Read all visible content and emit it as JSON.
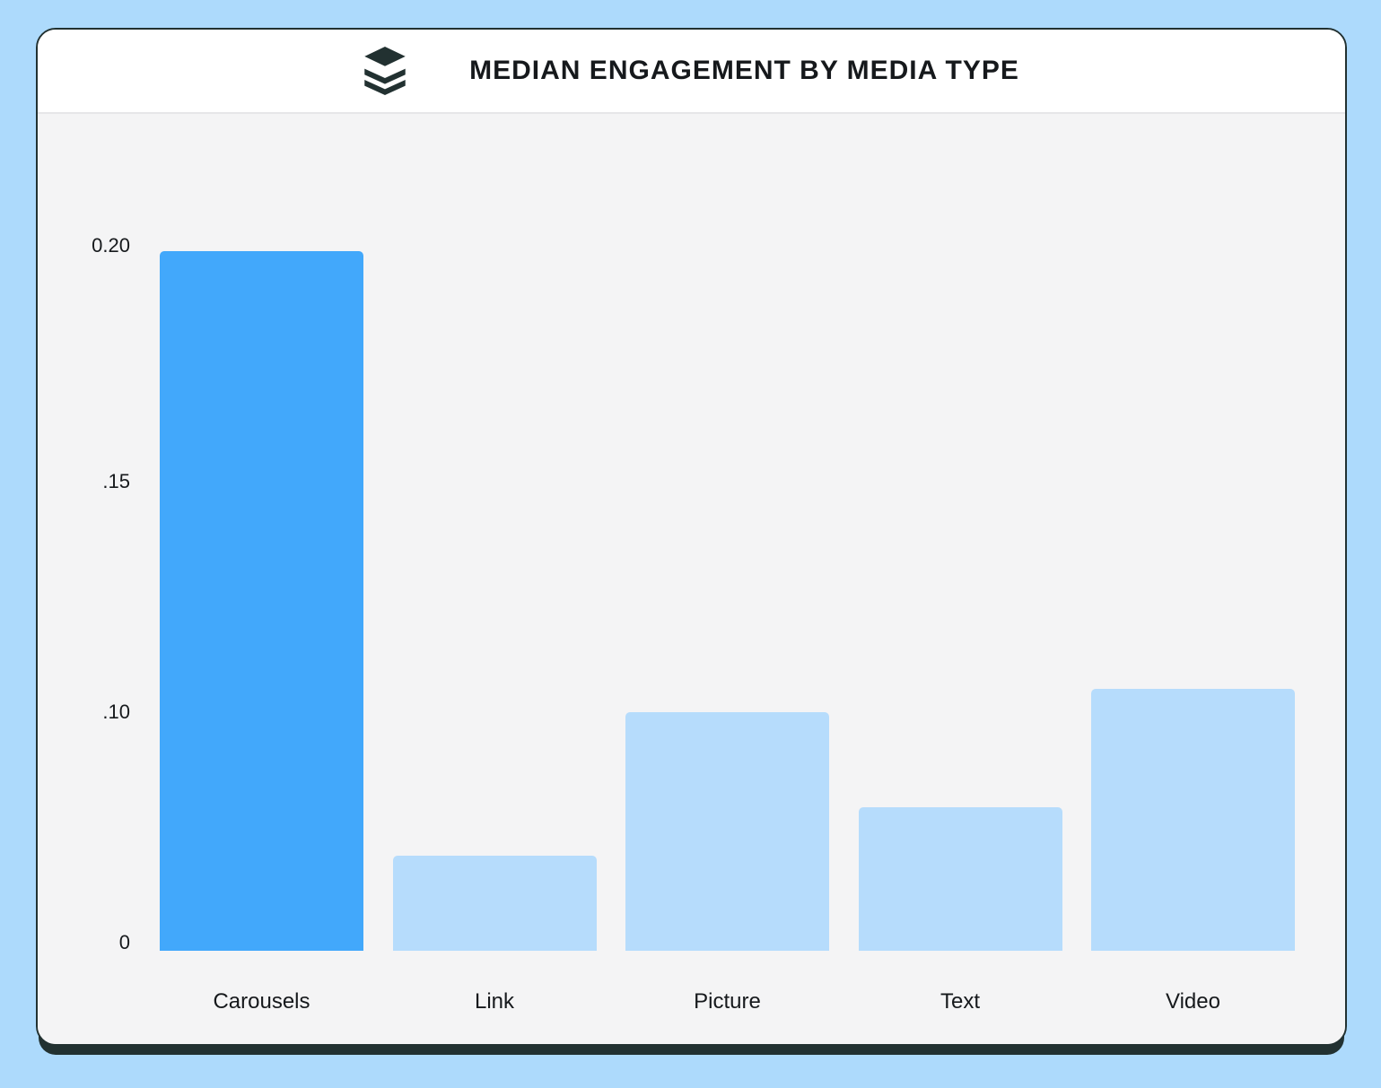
{
  "header": {
    "title": "MEDIAN ENGAGEMENT BY MEDIA TYPE",
    "logo": "buffer-logo"
  },
  "colors": {
    "page_bg": "#addafc",
    "card_border": "#223131",
    "header_bg": "#ffffff",
    "chart_bg": "#f4f4f5",
    "bar_default": "#b6dcfc",
    "bar_highlight": "#42a8fb",
    "text": "#16191c"
  },
  "chart_data": {
    "type": "bar",
    "title": "MEDIAN ENGAGEMENT BY MEDIA TYPE",
    "categories": [
      "Carousels",
      "Link",
      "Picture",
      "Text",
      "Video"
    ],
    "values": [
      0.2,
      0.04,
      0.1,
      0.06,
      0.105
    ],
    "highlighted_category": "Carousels",
    "highlight_reason": "Carousels bar shown in saturated blue; all other bars in pale blue",
    "xlabel": "",
    "ylabel": "",
    "y_ticks": [
      "0.20",
      ".15",
      ".10",
      "0"
    ],
    "ylim": [
      0,
      0.21
    ],
    "grid": false,
    "legend": false
  }
}
